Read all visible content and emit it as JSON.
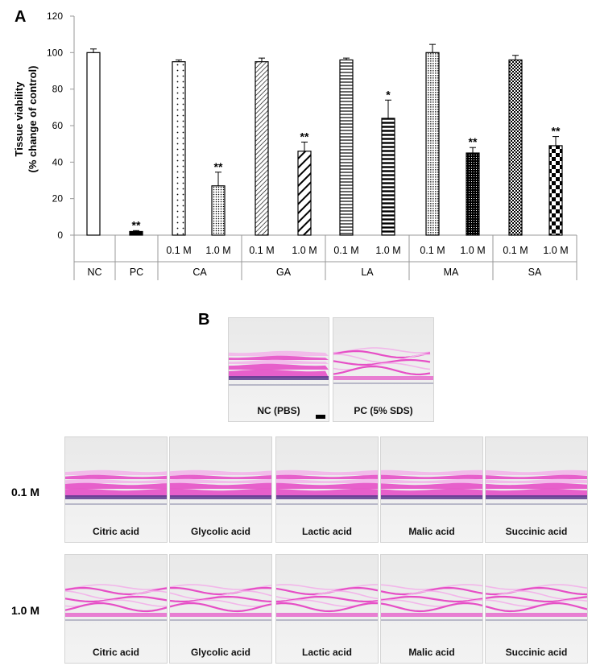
{
  "panel_a_label": "A",
  "panel_b_label": "B",
  "chart_data": {
    "type": "bar",
    "ylabel_line1": "Tissue viability",
    "ylabel_line2": "(% change of control)",
    "ylim": [
      0,
      120
    ],
    "yticks": [
      0,
      20,
      40,
      60,
      80,
      100,
      120
    ],
    "bars": [
      {
        "group": "NC",
        "label": "",
        "value": 100,
        "error": 2,
        "sig": "",
        "pattern": "open"
      },
      {
        "group": "PC",
        "label": "",
        "value": 2,
        "error": 0.5,
        "sig": "**",
        "pattern": "solid"
      },
      {
        "group": "CA",
        "label": "0.1 M",
        "value": 95,
        "error": 1,
        "sig": "",
        "pattern": "dots-sparse"
      },
      {
        "group": "CA",
        "label": "1.0 M",
        "value": 27,
        "error": 7.5,
        "sig": "**",
        "pattern": "dots-dense"
      },
      {
        "group": "GA",
        "label": "0.1 M",
        "value": 95,
        "error": 2,
        "sig": "",
        "pattern": "diag-thin"
      },
      {
        "group": "GA",
        "label": "1.0 M",
        "value": 46,
        "error": 5,
        "sig": "**",
        "pattern": "diag-thick"
      },
      {
        "group": "LA",
        "label": "0.1 M",
        "value": 96,
        "error": 1,
        "sig": "",
        "pattern": "horiz-thin"
      },
      {
        "group": "LA",
        "label": "1.0 M",
        "value": 64,
        "error": 10,
        "sig": "*",
        "pattern": "horiz-thick"
      },
      {
        "group": "MA",
        "label": "0.1 M",
        "value": 100,
        "error": 4.5,
        "sig": "",
        "pattern": "grid-fine"
      },
      {
        "group": "MA",
        "label": "1.0 M",
        "value": 45,
        "error": 3,
        "sig": "**",
        "pattern": "dark-fine"
      },
      {
        "group": "SA",
        "label": "0.1 M",
        "value": 96,
        "error": 2.5,
        "sig": "",
        "pattern": "check-fine"
      },
      {
        "group": "SA",
        "label": "1.0 M",
        "value": 49,
        "error": 5,
        "sig": "**",
        "pattern": "check-bold"
      }
    ],
    "groups": [
      "NC",
      "PC",
      "CA",
      "GA",
      "LA",
      "MA",
      "SA"
    ]
  },
  "panel_b": {
    "controls": [
      "NC (PBS)",
      "PC (5% SDS)"
    ],
    "row_labels": [
      "0.1 M",
      "1.0 M"
    ],
    "acid_names": [
      "Citric acid",
      "Glycolic acid",
      "Lactic acid",
      "Malic acid",
      "Succinic acid"
    ]
  },
  "colors": {
    "stain_pink": "#e64fc6",
    "stain_light": "#f2b6ea",
    "nuclei": "#5a3a8e",
    "background": "#ececec"
  }
}
